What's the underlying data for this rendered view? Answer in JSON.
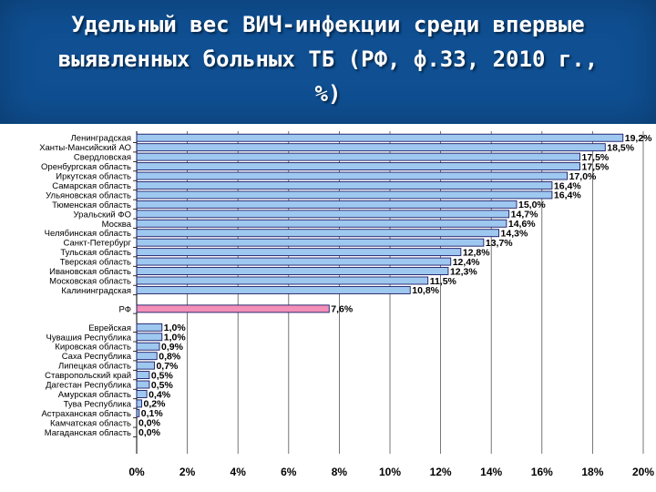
{
  "title": "Удельный вес ВИЧ-инфекции среди впервые выявленных больных ТБ (РФ, ф.33, 2010 г., %)",
  "colors": {
    "header": "#0f4f92",
    "bar": "#9ec8f0",
    "bar_rf": "#f48fb8",
    "bar_stroke": "#1a1a66"
  },
  "chart_data": {
    "type": "bar",
    "orientation": "horizontal",
    "xlim": [
      0,
      20
    ],
    "x_ticks": [
      "0%",
      "2%",
      "4%",
      "6%",
      "8%",
      "10%",
      "12%",
      "14%",
      "16%",
      "18%",
      "20%"
    ],
    "grid": true,
    "groups": [
      {
        "categories": [
          "Ленинградская",
          "Ханты-Мансийский АО",
          "Свердловская",
          "Оренбургская область",
          "Иркутская область",
          "Самарская область",
          "Ульяновская область",
          "Тюменская область",
          "Уральский ФО",
          "Москва",
          "Челябинская область",
          "Санкт-Петербург",
          "Тульская область",
          "Тверская область",
          "Ивановская область",
          "Московская область",
          "Калининградская"
        ],
        "values": [
          19.2,
          18.5,
          17.5,
          17.5,
          17.0,
          16.4,
          16.4,
          15.0,
          14.7,
          14.6,
          14.3,
          13.7,
          12.8,
          12.4,
          12.3,
          11.5,
          10.8
        ],
        "labels": [
          "19,2%",
          "18,5%",
          "17,5%",
          "17,5%",
          "17,0%",
          "16,4%",
          "16,4%",
          "15,0%",
          "14,7%",
          "14,6%",
          "14,3%",
          "13,7%",
          "12,8%",
          "12,4%",
          "12,3%",
          "11,5%",
          "10,8%"
        ]
      },
      {
        "categories": [
          "РФ"
        ],
        "values": [
          7.6
        ],
        "labels": [
          "7,6%"
        ],
        "highlight": true
      },
      {
        "categories": [
          "Еврейская",
          "Чувашия Республика",
          "Кировская область",
          "Саха Республика",
          "Липецкая область",
          "Ставропольский край",
          "Дагестан Республика",
          "Амурская область",
          "Тува Республика",
          "Астраханская область",
          "Камчатская область",
          "Магаданская область"
        ],
        "values": [
          1.0,
          1.0,
          0.9,
          0.8,
          0.7,
          0.5,
          0.5,
          0.4,
          0.2,
          0.1,
          0.0,
          0.0
        ],
        "labels": [
          "1,0%",
          "1,0%",
          "0,9%",
          "0,8%",
          "0,7%",
          "0,5%",
          "0,5%",
          "0,4%",
          "0,2%",
          "0,1%",
          "0,0%",
          "0,0%"
        ]
      }
    ]
  }
}
